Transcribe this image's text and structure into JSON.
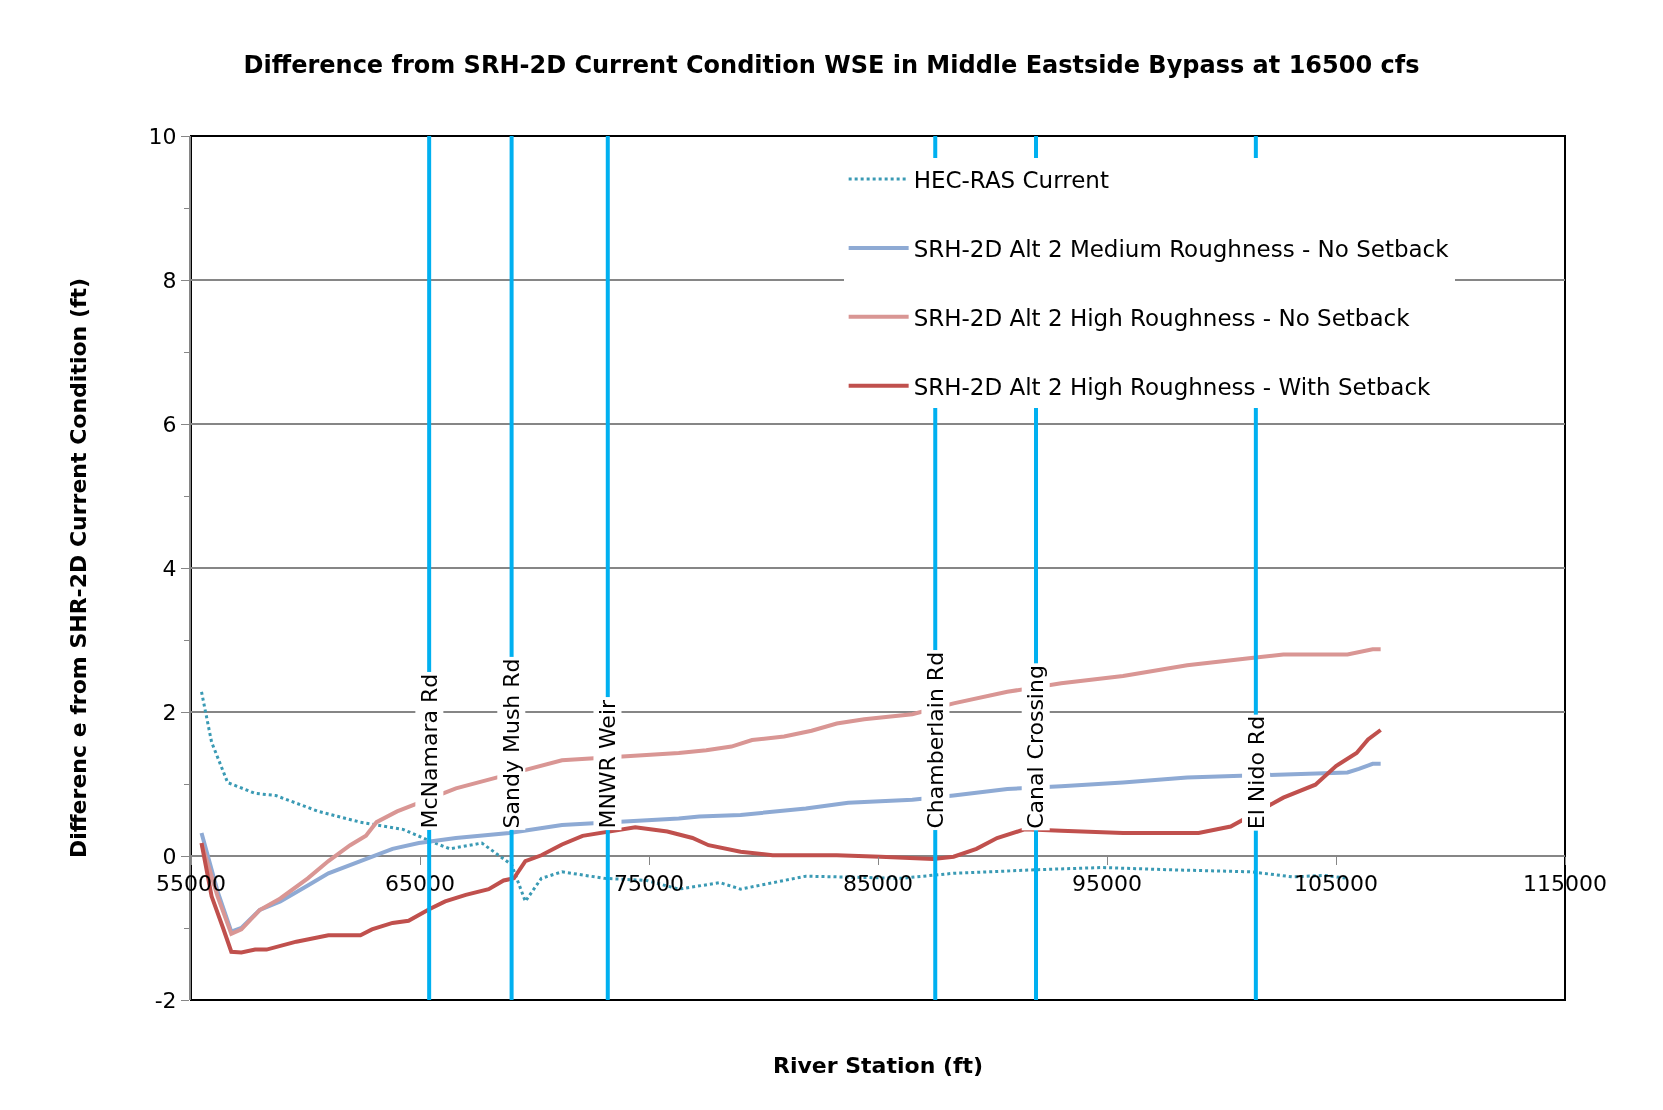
{
  "chart_data": {
    "type": "line",
    "title": "Difference from SRH-2D Current Condition WSE in Middle Eastside Bypass at 16500 cfs",
    "xlabel": "River Station (ft)",
    "ylabel": "Differenc e from SHR-2D Current Condition (ft)",
    "xlim": [
      55000,
      115000
    ],
    "xticks": [
      55000,
      65000,
      75000,
      85000,
      95000,
      105000,
      115000
    ],
    "ylim": [
      -2,
      10
    ],
    "yticks": [
      -2,
      0,
      2,
      4,
      6,
      8,
      10
    ],
    "grid": "y",
    "legend": "top right",
    "marker": "none",
    "series": [
      {
        "name": "HEC-RAS Current",
        "color": "#3a9ab4",
        "line_style": "dotted",
        "x": [
          55460,
          55900,
          56600,
          57800,
          58700,
          60560,
          62400,
          64260,
          65650,
          66300,
          67700,
          69000,
          69600,
          70300,
          71200,
          73050,
          74900,
          76300,
          78100,
          79000,
          81850,
          86000,
          88300,
          92000,
          94800,
          97600,
          101300,
          103100,
          104500,
          105500
        ],
        "values": [
          2.28,
          1.58,
          1.02,
          0.87,
          0.84,
          0.62,
          0.47,
          0.37,
          0.18,
          0.1,
          0.18,
          -0.12,
          -0.63,
          -0.31,
          -0.22,
          -0.31,
          -0.34,
          -0.46,
          -0.37,
          -0.46,
          -0.28,
          -0.31,
          -0.24,
          -0.19,
          -0.16,
          -0.19,
          -0.22,
          -0.29,
          -0.27,
          -0.31
        ]
      },
      {
        "name": "SRH-2D Alt 2 Medium Roughness - No Setback",
        "color": "#8eaad4",
        "line_style": "solid",
        "x": [
          55460,
          56160,
          56760,
          57200,
          58000,
          58900,
          60100,
          61000,
          62400,
          63800,
          64950,
          66570,
          68900,
          71200,
          76300,
          77200,
          79000,
          81850,
          83700,
          86500,
          88300,
          90650,
          93000,
          95700,
          98500,
          105500,
          106000,
          106600,
          106950
        ],
        "values": [
          0.32,
          -0.49,
          -1.05,
          -1.0,
          -0.75,
          -0.63,
          -0.41,
          -0.24,
          -0.07,
          0.1,
          0.18,
          0.25,
          0.32,
          0.43,
          0.52,
          0.55,
          0.57,
          0.66,
          0.74,
          0.78,
          0.84,
          0.93,
          0.97,
          1.02,
          1.09,
          1.16,
          1.21,
          1.28,
          1.28
        ]
      },
      {
        "name": "SRH-2D Alt 2 High Roughness - No Setback",
        "color": "#d99694",
        "line_style": "solid",
        "x": [
          55460,
          56160,
          56760,
          57200,
          58000,
          58900,
          60100,
          61000,
          61950,
          62640,
          63100,
          64000,
          66570,
          71200,
          76300,
          77500,
          78600,
          79500,
          80900,
          82100,
          83200,
          84400,
          86500,
          88300,
          90650,
          93000,
          95700,
          98500,
          101300,
          102700,
          105500,
          106600,
          106950
        ],
        "values": [
          0.18,
          -0.56,
          -1.08,
          -1.02,
          -0.75,
          -0.59,
          -0.31,
          -0.07,
          0.15,
          0.28,
          0.47,
          0.62,
          0.94,
          1.33,
          1.43,
          1.47,
          1.52,
          1.61,
          1.66,
          1.74,
          1.84,
          1.9,
          1.97,
          2.12,
          2.28,
          2.4,
          2.5,
          2.65,
          2.75,
          2.8,
          2.8,
          2.87,
          2.87
        ]
      },
      {
        "name": "SRH-2D Alt 2 High Roughness - With Setback",
        "color": "#c0504d",
        "line_style": "solid",
        "x": [
          55460,
          55900,
          56400,
          56760,
          57200,
          57800,
          58300,
          59600,
          61000,
          62400,
          62900,
          63800,
          64500,
          65400,
          66100,
          67000,
          68000,
          68650,
          69100,
          69600,
          70300,
          71200,
          72100,
          74400,
          75800,
          76900,
          77600,
          79000,
          80400,
          83200,
          85100,
          87400,
          88300,
          89300,
          90200,
          91400,
          93000,
          95700,
          99000,
          100400,
          102700,
          104100,
          105000,
          105900,
          106400,
          106950
        ],
        "values": [
          0.18,
          -0.56,
          -1.0,
          -1.33,
          -1.34,
          -1.3,
          -1.3,
          -1.19,
          -1.1,
          -1.1,
          -1.02,
          -0.93,
          -0.9,
          -0.74,
          -0.63,
          -0.54,
          -0.46,
          -0.34,
          -0.31,
          -0.07,
          0.01,
          0.16,
          0.28,
          0.4,
          0.34,
          0.25,
          0.15,
          0.06,
          0.01,
          0.01,
          -0.01,
          -0.04,
          -0.01,
          0.1,
          0.25,
          0.37,
          0.35,
          0.32,
          0.32,
          0.41,
          0.81,
          0.99,
          1.25,
          1.43,
          1.62,
          1.75
        ]
      }
    ],
    "ref_lines": [
      {
        "axis": "x",
        "value": 65400,
        "label": "McNamara Rd",
        "color": "#00b0f0"
      },
      {
        "axis": "x",
        "value": 69000,
        "label": "Sandy Mush Rd",
        "color": "#00b0f0"
      },
      {
        "axis": "x",
        "value": 73200,
        "label": "MNWR Weir",
        "color": "#00b0f0"
      },
      {
        "axis": "x",
        "value": 87500,
        "label": "Chamberlain Rd",
        "color": "#00b0f0"
      },
      {
        "axis": "x",
        "value": 91900,
        "label": "Canal Crossing",
        "color": "#00b0f0"
      },
      {
        "axis": "x",
        "value": 101500,
        "label": "El Nido Rd",
        "color": "#00b0f0"
      }
    ]
  }
}
